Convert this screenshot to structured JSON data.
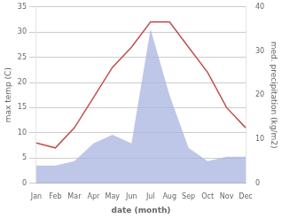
{
  "chart_data": {
    "type": "line",
    "categories": [
      "Jan",
      "Feb",
      "Mar",
      "Apr",
      "May",
      "Jun",
      "Jul",
      "Aug",
      "Sep",
      "Oct",
      "Nov",
      "Dec"
    ],
    "series": [
      {
        "type": "area",
        "axis": "y2",
        "color": "#aab4e0",
        "values": [
          4,
          4,
          5,
          9,
          11,
          9,
          35,
          20,
          8,
          5,
          6,
          6
        ]
      },
      {
        "type": "line",
        "color": "#c0504d",
        "values": [
          8,
          7,
          11,
          17,
          23,
          27,
          32,
          32,
          27,
          22,
          15,
          11
        ]
      }
    ],
    "xlabel": "date (month)",
    "ylabel": "max temp (C)",
    "y2label": "med. precipitation (kg/m2)",
    "ylim": [
      0,
      35
    ],
    "yticks": [
      0,
      5,
      10,
      15,
      20,
      25,
      30,
      35
    ],
    "y2lim": [
      0,
      40
    ],
    "y2ticks": [
      0,
      10,
      20,
      30,
      40
    ],
    "grid": true
  }
}
